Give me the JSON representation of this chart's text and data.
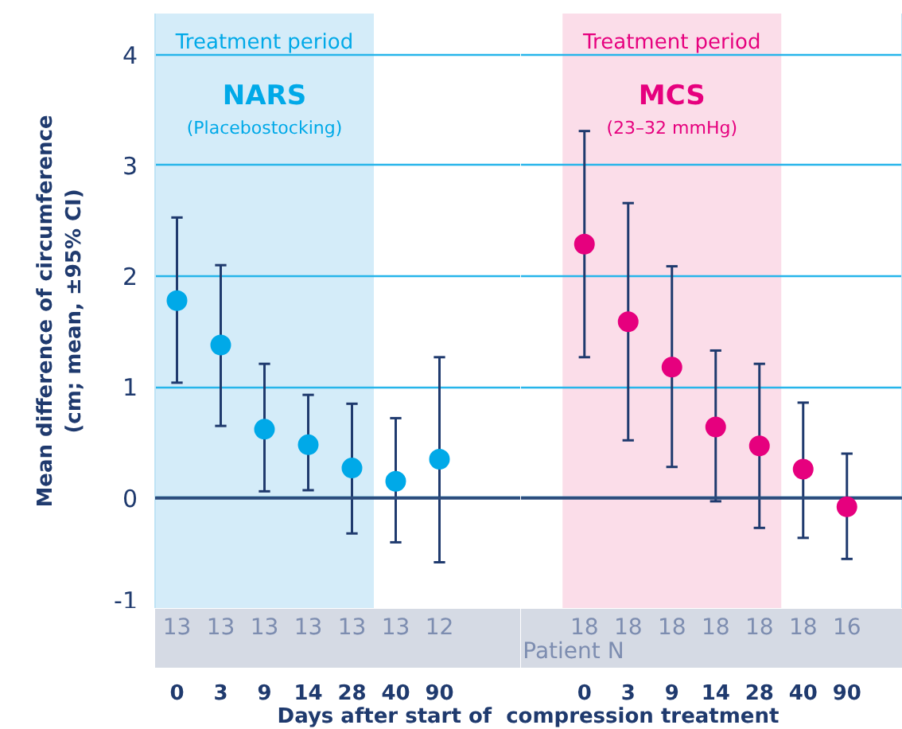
{
  "chart_data": [
    {
      "type": "scatter",
      "xlabel": "Days after start of  compression treatment",
      "ylabel": "Mean difference of circumference\n(cm; mean, ±95% CI)",
      "categories": [
        "0",
        "3",
        "9",
        "14",
        "28",
        "40",
        "90"
      ],
      "ylim": [
        -1,
        4.37
      ],
      "yticks": [
        -1,
        0,
        1,
        2,
        3,
        4
      ],
      "grid": "y",
      "marker": "circle",
      "series": [
        {
          "color": "#00a9e8",
          "values": [
            1.78,
            1.38,
            0.62,
            0.48,
            0.27,
            0.15,
            0.35
          ],
          "errors": [
            [
              1.04,
              2.53
            ],
            [
              0.65,
              2.1
            ],
            [
              0.06,
              1.21
            ],
            [
              0.07,
              0.93
            ],
            [
              -0.32,
              0.85
            ],
            [
              -0.4,
              0.72
            ],
            [
              -0.58,
              1.27
            ]
          ]
        }
      ],
      "bands": [
        {
          "axis": "x",
          "from": "0",
          "to": "28",
          "label": "Treatment period",
          "color": "#d4ecf9"
        }
      ],
      "ref_lines": [
        {
          "axis": "y",
          "value": 0,
          "color": "#2c4c7c"
        }
      ],
      "annotations": [
        "NARS",
        "(Placebostocking)",
        "13",
        "13",
        "13",
        "13",
        "13",
        "13",
        "12"
      ]
    },
    {
      "type": "scatter",
      "categories": [
        "0",
        "3",
        "9",
        "14",
        "28",
        "40",
        "90"
      ],
      "ylim": [
        -1,
        4.37
      ],
      "yticks": [
        -1,
        0,
        1,
        2,
        3,
        4
      ],
      "tick_labels": "x",
      "grid": "y",
      "marker": "circle",
      "series": [
        {
          "color": "#e6007e",
          "values": [
            2.29,
            1.59,
            1.18,
            0.64,
            0.47,
            0.26,
            -0.08
          ],
          "errors": [
            [
              1.27,
              3.31
            ],
            [
              0.52,
              2.66
            ],
            [
              0.28,
              2.09
            ],
            [
              -0.03,
              1.33
            ],
            [
              -0.27,
              1.21
            ],
            [
              -0.36,
              0.86
            ],
            [
              -0.55,
              0.4
            ]
          ]
        }
      ],
      "bands": [
        {
          "axis": "x",
          "from": "0",
          "to": "28",
          "label": "Treatment period",
          "color": "#fbdde9"
        }
      ],
      "ref_lines": [
        {
          "axis": "y",
          "value": 0,
          "color": "#2c4c7c"
        }
      ],
      "annotations": [
        "MCS",
        "(23–32 mmHg)",
        "18",
        "18",
        "18",
        "18",
        "18",
        "18",
        "16",
        "Patient N"
      ]
    }
  ]
}
